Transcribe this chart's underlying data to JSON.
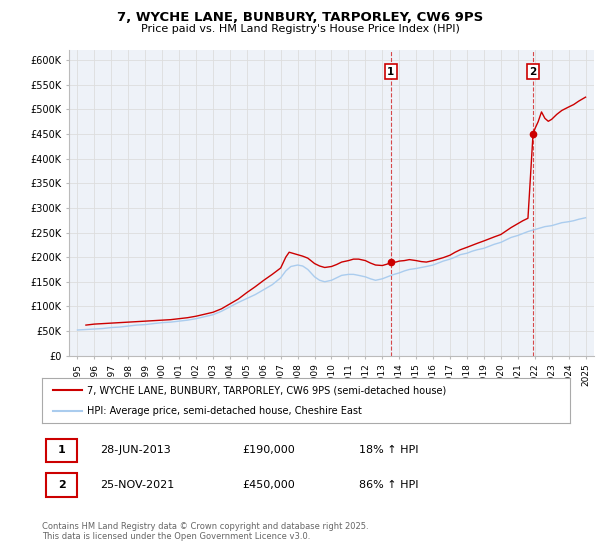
{
  "title": "7, WYCHE LANE, BUNBURY, TARPORLEY, CW6 9PS",
  "subtitle": "Price paid vs. HM Land Registry's House Price Index (HPI)",
  "legend_label_red": "7, WYCHE LANE, BUNBURY, TARPORLEY, CW6 9PS (semi-detached house)",
  "legend_label_blue": "HPI: Average price, semi-detached house, Cheshire East",
  "annotation1_label": "1",
  "annotation1_date": "28-JUN-2013",
  "annotation1_price": "£190,000",
  "annotation1_hpi": "18% ↑ HPI",
  "annotation1_year": 2013.5,
  "annotation1_value": 190000,
  "annotation2_label": "2",
  "annotation2_date": "25-NOV-2021",
  "annotation2_price": "£450,000",
  "annotation2_hpi": "86% ↑ HPI",
  "annotation2_year": 2021.9,
  "annotation2_value": 450000,
  "footer": "Contains HM Land Registry data © Crown copyright and database right 2025.\nThis data is licensed under the Open Government Licence v3.0.",
  "ylim": [
    0,
    620000
  ],
  "xlim": [
    1994.5,
    2025.5
  ],
  "yticks": [
    0,
    50000,
    100000,
    150000,
    200000,
    250000,
    300000,
    350000,
    400000,
    450000,
    500000,
    550000,
    600000
  ],
  "ytick_labels": [
    "£0",
    "£50K",
    "£100K",
    "£150K",
    "£200K",
    "£250K",
    "£300K",
    "£350K",
    "£400K",
    "£450K",
    "£500K",
    "£550K",
    "£600K"
  ],
  "xticks": [
    1995,
    1996,
    1997,
    1998,
    1999,
    2000,
    2001,
    2002,
    2003,
    2004,
    2005,
    2006,
    2007,
    2008,
    2009,
    2010,
    2011,
    2012,
    2013,
    2014,
    2015,
    2016,
    2017,
    2018,
    2019,
    2020,
    2021,
    2022,
    2023,
    2024,
    2025
  ],
  "red_color": "#cc0000",
  "blue_color": "#aaccee",
  "grid_color": "#dddddd",
  "plot_bg_color": "#eef2f8",
  "red_x": [
    1995.5,
    1996.0,
    1996.5,
    1997.0,
    1997.5,
    1998.0,
    1998.5,
    1999.0,
    1999.5,
    2000.0,
    2000.5,
    2001.0,
    2001.5,
    2002.0,
    2002.5,
    2003.0,
    2003.5,
    2004.0,
    2004.5,
    2005.0,
    2005.5,
    2006.0,
    2006.5,
    2007.0,
    2007.3,
    2007.5,
    2007.8,
    2008.0,
    2008.3,
    2008.6,
    2009.0,
    2009.3,
    2009.6,
    2010.0,
    2010.3,
    2010.6,
    2011.0,
    2011.3,
    2011.6,
    2012.0,
    2012.3,
    2012.6,
    2013.0,
    2013.3,
    2013.5,
    2013.8,
    2014.0,
    2014.3,
    2014.6,
    2015.0,
    2015.3,
    2015.6,
    2016.0,
    2016.3,
    2016.6,
    2017.0,
    2017.3,
    2017.6,
    2018.0,
    2018.3,
    2018.6,
    2019.0,
    2019.3,
    2019.6,
    2020.0,
    2020.3,
    2020.6,
    2021.0,
    2021.3,
    2021.6,
    2021.9,
    2022.0,
    2022.2,
    2022.4,
    2022.6,
    2022.8,
    2023.0,
    2023.3,
    2023.6,
    2024.0,
    2024.3,
    2024.6,
    2025.0
  ],
  "red_y": [
    62000,
    64000,
    65000,
    66000,
    67000,
    68000,
    69000,
    70000,
    71000,
    72000,
    73000,
    75000,
    77000,
    80000,
    84000,
    88000,
    95000,
    105000,
    115000,
    128000,
    140000,
    153000,
    165000,
    178000,
    200000,
    210000,
    207000,
    205000,
    202000,
    198000,
    187000,
    182000,
    179000,
    181000,
    185000,
    190000,
    193000,
    196000,
    196000,
    193000,
    188000,
    184000,
    183000,
    186000,
    190000,
    190000,
    192000,
    193000,
    195000,
    193000,
    191000,
    190000,
    193000,
    196000,
    199000,
    204000,
    210000,
    215000,
    220000,
    224000,
    228000,
    233000,
    237000,
    241000,
    246000,
    253000,
    260000,
    268000,
    274000,
    279000,
    450000,
    460000,
    475000,
    495000,
    482000,
    476000,
    480000,
    490000,
    498000,
    505000,
    510000,
    517000,
    525000
  ],
  "blue_x": [
    1995.0,
    1995.5,
    1996.0,
    1996.5,
    1997.0,
    1997.5,
    1998.0,
    1998.5,
    1999.0,
    1999.5,
    2000.0,
    2000.5,
    2001.0,
    2001.5,
    2002.0,
    2002.5,
    2003.0,
    2003.5,
    2004.0,
    2004.5,
    2005.0,
    2005.5,
    2006.0,
    2006.5,
    2007.0,
    2007.3,
    2007.6,
    2008.0,
    2008.3,
    2008.6,
    2009.0,
    2009.3,
    2009.6,
    2010.0,
    2010.3,
    2010.6,
    2011.0,
    2011.3,
    2011.6,
    2012.0,
    2012.3,
    2012.6,
    2013.0,
    2013.3,
    2013.6,
    2014.0,
    2014.3,
    2014.6,
    2015.0,
    2015.3,
    2015.6,
    2016.0,
    2016.3,
    2016.6,
    2017.0,
    2017.3,
    2017.6,
    2018.0,
    2018.3,
    2018.6,
    2019.0,
    2019.3,
    2019.6,
    2020.0,
    2020.3,
    2020.6,
    2021.0,
    2021.3,
    2021.6,
    2022.0,
    2022.3,
    2022.6,
    2023.0,
    2023.3,
    2023.6,
    2024.0,
    2024.3,
    2024.6,
    2025.0
  ],
  "blue_y": [
    52000,
    53000,
    54000,
    55000,
    57000,
    58000,
    60000,
    62000,
    63000,
    65000,
    67000,
    68000,
    70000,
    72000,
    75000,
    79000,
    83000,
    90000,
    99000,
    108000,
    116000,
    124000,
    134000,
    144000,
    158000,
    172000,
    181000,
    184000,
    182000,
    175000,
    160000,
    153000,
    150000,
    153000,
    158000,
    163000,
    165000,
    165000,
    163000,
    160000,
    156000,
    153000,
    156000,
    160000,
    164000,
    168000,
    172000,
    175000,
    177000,
    179000,
    181000,
    184000,
    188000,
    192000,
    196000,
    200000,
    205000,
    208000,
    212000,
    215000,
    218000,
    222000,
    226000,
    230000,
    235000,
    240000,
    244000,
    248000,
    252000,
    256000,
    259000,
    262000,
    264000,
    267000,
    270000,
    272000,
    274000,
    277000,
    280000
  ]
}
